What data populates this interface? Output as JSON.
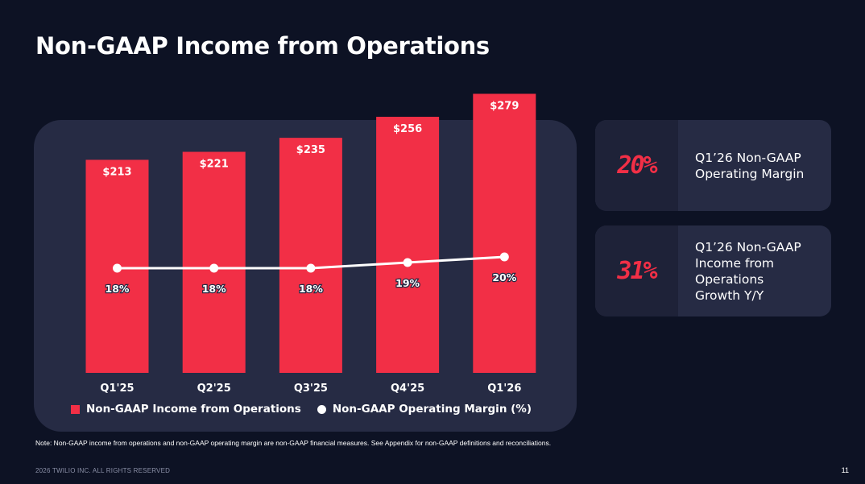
{
  "slide": {
    "title": "Non-GAAP Income from Operations",
    "note": "Note: Non-GAAP income from operations and non-GAAP operating margin are non-GAAP financial measures. See Appendix for non-GAAP definitions and reconciliations.",
    "copyright": "2026 TWILIO INC. ALL RIGHTS RESERVED",
    "page_number": "11"
  },
  "kpis": [
    {
      "value": "20%",
      "label": "Q1’26 Non-GAAP\nOperating Margin"
    },
    {
      "value": "31%",
      "label": "Q1’26 Non-GAAP\nIncome from\nOperations\nGrowth Y/Y"
    }
  ],
  "colors": {
    "background": "#0d1224",
    "panel": "#262b44",
    "bar": "#f22f46",
    "line": "#ffffff"
  },
  "chart_data": {
    "type": "bar",
    "categories": [
      "Q1'25",
      "Q2'25",
      "Q3'25",
      "Q4'25",
      "Q1'26"
    ],
    "series": [
      {
        "name": "Non-GAAP Income from Operations",
        "type": "bar",
        "values": [
          213,
          221,
          235,
          256,
          279
        ],
        "labels": [
          "$213",
          "$221",
          "$235",
          "$256",
          "$279"
        ],
        "color": "#f22f46"
      },
      {
        "name": "Non-GAAP Operating Margin (%)",
        "type": "line",
        "values": [
          18,
          18,
          18,
          19,
          20
        ],
        "labels": [
          "18%",
          "18%",
          "18%",
          "19%",
          "20%"
        ],
        "color": "#ffffff"
      }
    ],
    "title": "",
    "xlabel": "",
    "ylabel": "",
    "legend": "bottom"
  }
}
